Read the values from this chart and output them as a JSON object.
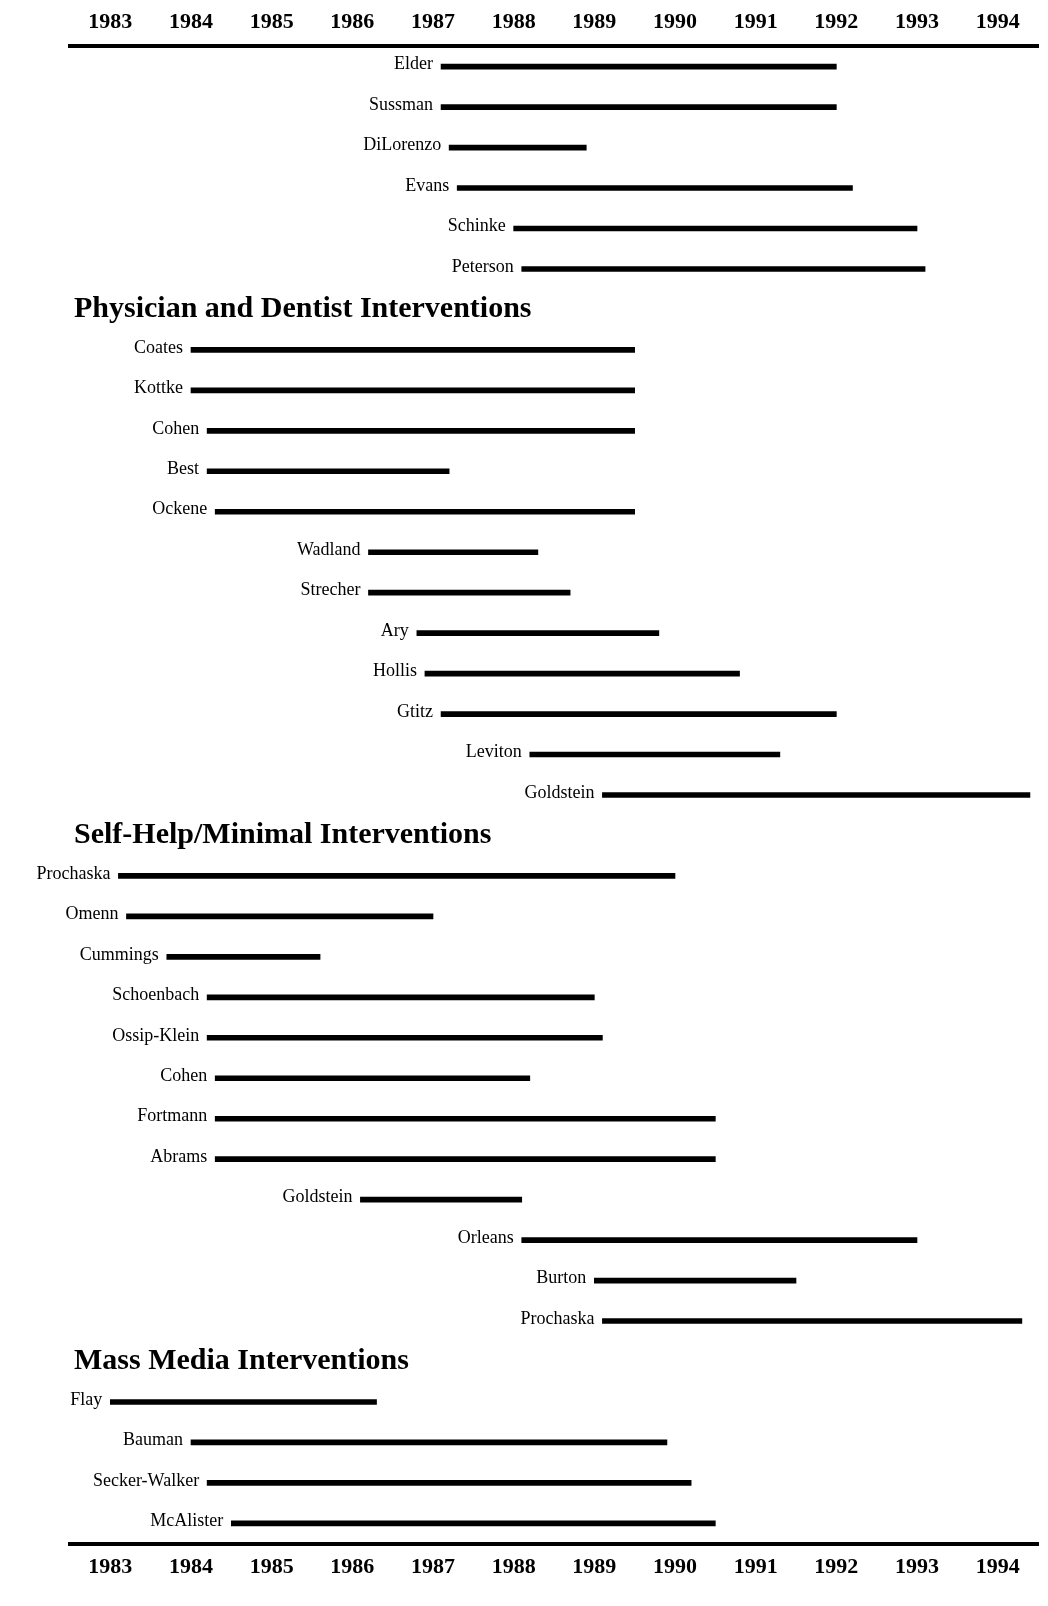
{
  "chart_data": {
    "type": "bar",
    "orientation": "horizontal",
    "categories": [
      "Elder",
      "Sussman",
      "DiLorenzo",
      "Evans",
      "Schinke",
      "Peterson",
      null,
      "Coates",
      "Kottke",
      "Cohen",
      "Best",
      "Ockene",
      "Wadland",
      "Strecher",
      "Ary",
      "Hollis",
      "Gtitz",
      "Leviton",
      "Goldstein",
      null,
      "Prochaska",
      "Omenn",
      "Cummings",
      "Schoenbach",
      "Ossip-Klein",
      "Cohen",
      "Fortmann",
      "Abrams",
      "Goldstein",
      "Orleans",
      "Burton",
      "Prochaska",
      null,
      "Flay",
      "Bauman",
      "Secker-Walker",
      "McAlister"
    ],
    "series": [
      {
        "color": "#000000",
        "base": [
          1987.6,
          1987.6,
          1987.7,
          1987.8,
          1988.5,
          1988.6,
          null,
          1984.5,
          1984.5,
          1984.7,
          1984.7,
          1984.8,
          1986.7,
          1986.7,
          1987.3,
          1987.4,
          1987.6,
          1988.7,
          1989.6,
          null,
          1983.6,
          1983.7,
          1984.2,
          1984.7,
          1984.7,
          1984.8,
          1984.8,
          1984.8,
          1986.6,
          1988.6,
          1989.5,
          1989.6,
          null,
          1983.5,
          1984.5,
          1984.7,
          1985.0
        ],
        "values": [
          4.9,
          4.9,
          1.7,
          4.9,
          5.0,
          5.0,
          null,
          5.5,
          5.5,
          5.3,
          3.0,
          5.2,
          2.1,
          2.5,
          3.0,
          3.9,
          4.9,
          3.1,
          5.3,
          null,
          6.9,
          3.8,
          1.9,
          4.8,
          4.9,
          3.9,
          6.2,
          6.2,
          2.0,
          4.9,
          2.5,
          5.2,
          null,
          3.3,
          5.9,
          6.0,
          6.0
        ]
      }
    ],
    "annotations": [
      "Physician and Dentist Interventions",
      "Self-Help/Minimal Interventions",
      "Mass Media Interventions"
    ],
    "xlim": [
      1983,
      1995
    ],
    "xticks": [
      {
        "value": 1983.5,
        "label": "1983"
      },
      {
        "value": 1984.5,
        "label": "1984"
      },
      {
        "value": 1985.5,
        "label": "1985"
      },
      {
        "value": 1986.5,
        "label": "1986"
      },
      {
        "value": 1987.5,
        "label": "1987"
      },
      {
        "value": 1988.5,
        "label": "1988"
      },
      {
        "value": 1989.5,
        "label": "1989"
      },
      {
        "value": 1990.5,
        "label": "1990"
      },
      {
        "value": 1991.5,
        "label": "1991"
      },
      {
        "value": 1992.5,
        "label": "1992"
      },
      {
        "value": 1993.5,
        "label": "1993"
      },
      {
        "value": 1994.5,
        "label": "1994"
      }
    ],
    "x2lim": [
      1983,
      1995
    ],
    "x2ticks": [
      {
        "value": 1983.5,
        "label": "1983"
      },
      {
        "value": 1984.5,
        "label": "1984"
      },
      {
        "value": 1985.5,
        "label": "1985"
      },
      {
        "value": 1986.5,
        "label": "1986"
      },
      {
        "value": 1987.5,
        "label": "1987"
      },
      {
        "value": 1988.5,
        "label": "1988"
      },
      {
        "value": 1989.5,
        "label": "1989"
      },
      {
        "value": 1990.5,
        "label": "1990"
      },
      {
        "value": 1991.5,
        "label": "1991"
      },
      {
        "value": 1992.5,
        "label": "1992"
      },
      {
        "value": 1993.5,
        "label": "1993"
      },
      {
        "value": 1994.5,
        "label": "1994"
      }
    ],
    "grid": false,
    "legend": false
  }
}
